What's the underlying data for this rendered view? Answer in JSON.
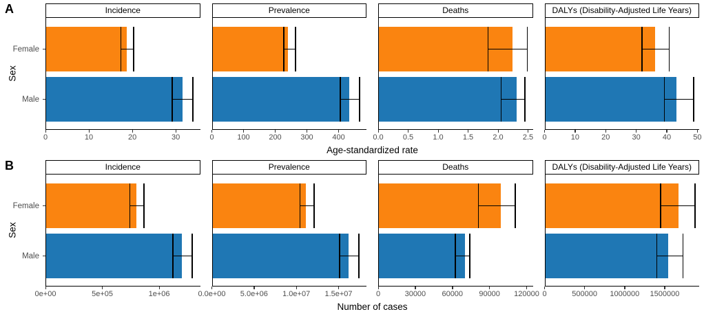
{
  "figure": {
    "background": "#ffffff",
    "colors": {
      "Female": "#FA8410",
      "Male": "#1F77B4",
      "error_bar": "#000000",
      "tick_label": "#4d4d4d"
    }
  },
  "chart_data": [
    {
      "type": "bar",
      "orientation": "horizontal",
      "row_label": "A",
      "xlabel": "Age-standardized rate",
      "ylabel": "Sex",
      "categories": [
        "Female",
        "Male"
      ],
      "legend": "none",
      "grid": false,
      "panels": [
        {
          "title": "Incidence",
          "xlim": [
            0,
            35.6
          ],
          "ticks": [
            {
              "v": 0,
              "label": "0"
            },
            {
              "v": 10,
              "label": "10"
            },
            {
              "v": 20,
              "label": "20"
            },
            {
              "v": 30,
              "label": "30"
            }
          ],
          "series": [
            {
              "name": "Female",
              "value": 18.7,
              "ci_low": 17.3,
              "ci_high": 20.3
            },
            {
              "name": "Male",
              "value": 31.6,
              "ci_low": 29.2,
              "ci_high": 34.0
            }
          ]
        },
        {
          "title": "Prevalence",
          "xlim": [
            0,
            488
          ],
          "ticks": [
            {
              "v": 0,
              "label": "0"
            },
            {
              "v": 100,
              "label": "100"
            },
            {
              "v": 200,
              "label": "200"
            },
            {
              "v": 300,
              "label": "300"
            },
            {
              "v": 400,
              "label": "400"
            }
          ],
          "series": [
            {
              "name": "Female",
              "value": 240,
              "ci_low": 226,
              "ci_high": 264
            },
            {
              "name": "Male",
              "value": 433,
              "ci_low": 406,
              "ci_high": 466
            }
          ]
        },
        {
          "title": "Deaths",
          "xlim": [
            0,
            2.58
          ],
          "ticks": [
            {
              "v": 0,
              "label": "0.0"
            },
            {
              "v": 0.5,
              "label": "0.5"
            },
            {
              "v": 1.0,
              "label": "1.0"
            },
            {
              "v": 1.5,
              "label": "1.5"
            },
            {
              "v": 2.0,
              "label": "2.0"
            },
            {
              "v": 2.5,
              "label": "2.5"
            }
          ],
          "series": [
            {
              "name": "Female",
              "value": 2.24,
              "ci_low": 1.83,
              "ci_high": 2.49
            },
            {
              "name": "Male",
              "value": 2.31,
              "ci_low": 2.05,
              "ci_high": 2.45
            }
          ]
        },
        {
          "title": "DALYs (Disability-Adjusted Life Years)",
          "xlim": [
            0,
            50.6
          ],
          "ticks": [
            {
              "v": 0,
              "label": "0"
            },
            {
              "v": 10,
              "label": "10"
            },
            {
              "v": 20,
              "label": "20"
            },
            {
              "v": 30,
              "label": "30"
            },
            {
              "v": 40,
              "label": "40"
            },
            {
              "v": 50,
              "label": "50"
            }
          ],
          "series": [
            {
              "name": "Female",
              "value": 36.2,
              "ci_low": 31.8,
              "ci_high": 40.8
            },
            {
              "name": "Male",
              "value": 43.1,
              "ci_low": 39.2,
              "ci_high": 48.8
            }
          ]
        }
      ]
    },
    {
      "type": "bar",
      "orientation": "horizontal",
      "row_label": "B",
      "xlabel": "Number of cases",
      "ylabel": "Sex",
      "categories": [
        "Female",
        "Male"
      ],
      "legend": "none",
      "grid": false,
      "panels": [
        {
          "title": "Incidence",
          "xlim": [
            0,
            1360000
          ],
          "ticks": [
            {
              "v": 0,
              "label": "0e+00"
            },
            {
              "v": 500000,
              "label": "5e+05"
            },
            {
              "v": 1000000,
              "label": "1e+06"
            }
          ],
          "series": [
            {
              "name": "Female",
              "value": 800000,
              "ci_low": 740000,
              "ci_high": 865000
            },
            {
              "name": "Male",
              "value": 1200000,
              "ci_low": 1120000,
              "ci_high": 1290000
            }
          ]
        },
        {
          "title": "Prevalence",
          "xlim": [
            0,
            18300000
          ],
          "ticks": [
            {
              "v": 0,
              "label": "0.0e+00"
            },
            {
              "v": 5000000,
              "label": "5.0e+06"
            },
            {
              "v": 10000000,
              "label": "1.0e+07"
            },
            {
              "v": 15000000,
              "label": "1.5e+07"
            }
          ],
          "series": [
            {
              "name": "Female",
              "value": 11100000,
              "ci_low": 10400000,
              "ci_high": 12100000
            },
            {
              "name": "Male",
              "value": 16200000,
              "ci_low": 15100000,
              "ci_high": 17400000
            }
          ]
        },
        {
          "title": "Deaths",
          "xlim": [
            0,
            125000
          ],
          "ticks": [
            {
              "v": 0,
              "label": "0"
            },
            {
              "v": 30000,
              "label": "30000"
            },
            {
              "v": 60000,
              "label": "60000"
            },
            {
              "v": 90000,
              "label": "90000"
            },
            {
              "v": 120000,
              "label": "120000"
            }
          ],
          "series": [
            {
              "name": "Female",
              "value": 99000,
              "ci_low": 81000,
              "ci_high": 111000
            },
            {
              "name": "Male",
              "value": 69800,
              "ci_low": 62300,
              "ci_high": 74000
            }
          ]
        },
        {
          "title": "DALYs (Disability-Adjusted Life Years)",
          "xlim": [
            0,
            1930000
          ],
          "ticks": [
            {
              "v": 0,
              "label": "0"
            },
            {
              "v": 500000,
              "label": "500000"
            },
            {
              "v": 1000000,
              "label": "1000000"
            },
            {
              "v": 1500000,
              "label": "1500000"
            }
          ],
          "series": [
            {
              "name": "Female",
              "value": 1670000,
              "ci_low": 1450000,
              "ci_high": 1880000
            },
            {
              "name": "Male",
              "value": 1540000,
              "ci_low": 1400000,
              "ci_high": 1730000
            }
          ]
        }
      ]
    }
  ]
}
